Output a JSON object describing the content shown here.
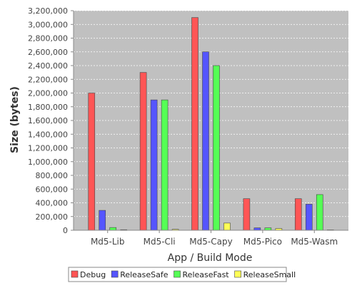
{
  "chart_data": {
    "type": "bar",
    "title": "",
    "xlabel": "App / Build Mode",
    "ylabel": "Size (bytes)",
    "categories": [
      "Md5-Lib",
      "Md5-Cli",
      "Md5-Capy",
      "Md5-Pico",
      "Md5-Wasm"
    ],
    "ylim": [
      0,
      3200000
    ],
    "ytick_step": 200000,
    "grid": true,
    "legend_position": "bottom",
    "plot_background": "#c0c0c0",
    "series": [
      {
        "name": "Debug",
        "color": "#ff5555",
        "values": [
          2000000,
          2300000,
          3100000,
          460000,
          460000
        ]
      },
      {
        "name": "ReleaseSafe",
        "color": "#5555ff",
        "values": [
          290000,
          1900000,
          2600000,
          35000,
          380000
        ]
      },
      {
        "name": "ReleaseFast",
        "color": "#55ff55",
        "values": [
          40000,
          1900000,
          2400000,
          35000,
          520000
        ]
      },
      {
        "name": "ReleaseSmall",
        "color": "#ffff55",
        "values": [
          8000,
          14000,
          105000,
          25000,
          6000
        ]
      }
    ]
  }
}
